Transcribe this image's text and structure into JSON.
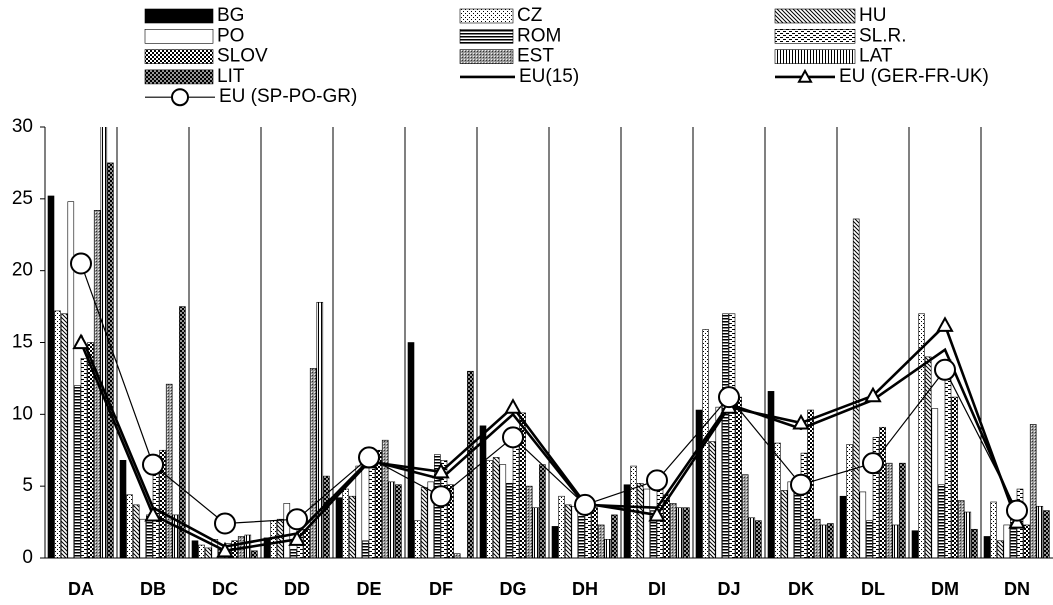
{
  "chart_data": {
    "type": "bar",
    "categories": [
      "DA",
      "DB",
      "DC",
      "DD",
      "DE",
      "DF",
      "DG",
      "DH",
      "DI",
      "DJ",
      "DK",
      "DL",
      "DM",
      "DN"
    ],
    "ylim": [
      0,
      30
    ],
    "yticks": [
      0,
      5,
      10,
      15,
      20,
      25,
      30
    ],
    "series": [
      {
        "name": "BG",
        "type": "bar",
        "color": "#000000",
        "pattern": "solid",
        "values": [
          25.2,
          6.8,
          1.2,
          1.4,
          4.2,
          15,
          9.2,
          2.2,
          5.1,
          10.3,
          11.6,
          4.3,
          1.9,
          1.5
        ]
      },
      {
        "name": "CZ",
        "type": "bar",
        "color": "#000000",
        "pattern": "dots-light",
        "values": [
          17.2,
          4.4,
          0.9,
          2.6,
          4.8,
          2.6,
          6.8,
          4.3,
          6.4,
          15.9,
          8,
          7.9,
          17,
          3.9
        ]
      },
      {
        "name": "HU",
        "type": "bar",
        "color": "#000000",
        "pattern": "hatch",
        "values": [
          17,
          3.7,
          0.7,
          2.7,
          4.3,
          4.9,
          7,
          3.7,
          5.2,
          8.1,
          4.7,
          23.6,
          14,
          1.2
        ]
      },
      {
        "name": "PO",
        "type": "bar",
        "color": "#000000",
        "pattern": "white",
        "values": [
          24.8,
          2.7,
          1.3,
          3.8,
          6.4,
          5.3,
          6.5,
          3.6,
          4.8,
          10.5,
          5.3,
          4.6,
          10.4,
          2.3
        ]
      },
      {
        "name": "ROM",
        "type": "bar",
        "color": "#000000",
        "pattern": "hstripes",
        "values": [
          12,
          3,
          0.6,
          0.6,
          1.2,
          7.2,
          5.2,
          2.9,
          3.3,
          17,
          5.6,
          2.6,
          5.1,
          4
        ]
      },
      {
        "name": "SL.R.",
        "type": "bar",
        "color": "#000000",
        "pattern": "dashed",
        "values": [
          13.9,
          6,
          1,
          3.3,
          6.7,
          6.8,
          8.5,
          3.5,
          5.5,
          17,
          7.3,
          8.4,
          13.8,
          4.8
        ]
      },
      {
        "name": "SLOV",
        "type": "bar",
        "color": "#000000",
        "pattern": "checker",
        "values": [
          15,
          7.5,
          1.2,
          2,
          7.5,
          5.1,
          10.1,
          3.5,
          4.4,
          11.2,
          10.3,
          9.1,
          11.2,
          2.3
        ]
      },
      {
        "name": "EST",
        "type": "bar",
        "color": "#000000",
        "pattern": "gray",
        "values": [
          24.2,
          12.1,
          1.5,
          13.2,
          8.2,
          0.3,
          5,
          2.3,
          3.8,
          5.8,
          2.7,
          6.6,
          4,
          9.3
        ]
      },
      {
        "name": "LAT",
        "type": "bar",
        "color": "#000000",
        "pattern": "vstripes",
        "values": [
          32,
          3,
          1.6,
          17.8,
          5.3,
          0,
          3.5,
          1.3,
          3.5,
          2.8,
          2.3,
          2.3,
          3.2,
          3.6
        ]
      },
      {
        "name": "LIT",
        "type": "bar",
        "color": "#000000",
        "pattern": "dots-dark",
        "values": [
          27.5,
          17.5,
          0.5,
          5.7,
          5.1,
          13,
          6.5,
          3,
          3.5,
          2.6,
          2.4,
          6.6,
          2,
          3.3
        ]
      },
      {
        "name": "EU(15)",
        "type": "line",
        "color": "#000000",
        "marker": "none",
        "values": [
          15.5,
          3.5,
          0.8,
          1.7,
          6.8,
          5.5,
          10,
          3.7,
          3.5,
          10.7,
          9,
          11,
          14.5,
          3
        ]
      },
      {
        "name": "EU (GER-FR-UK)",
        "type": "line",
        "color": "#000000",
        "marker": "triangle",
        "values": [
          15,
          3,
          0.5,
          1.3,
          6.7,
          6,
          10.5,
          3.8,
          3,
          10.5,
          9.4,
          11.3,
          16.2,
          2.5
        ]
      },
      {
        "name": "EU (SP-PO-GR)",
        "type": "line",
        "color": "#000000",
        "marker": "circle",
        "values": [
          20.5,
          6.5,
          2.4,
          2.7,
          7,
          4.3,
          8.4,
          3.7,
          5.4,
          11.2,
          5.1,
          6.6,
          13.1,
          3.3
        ]
      }
    ]
  }
}
